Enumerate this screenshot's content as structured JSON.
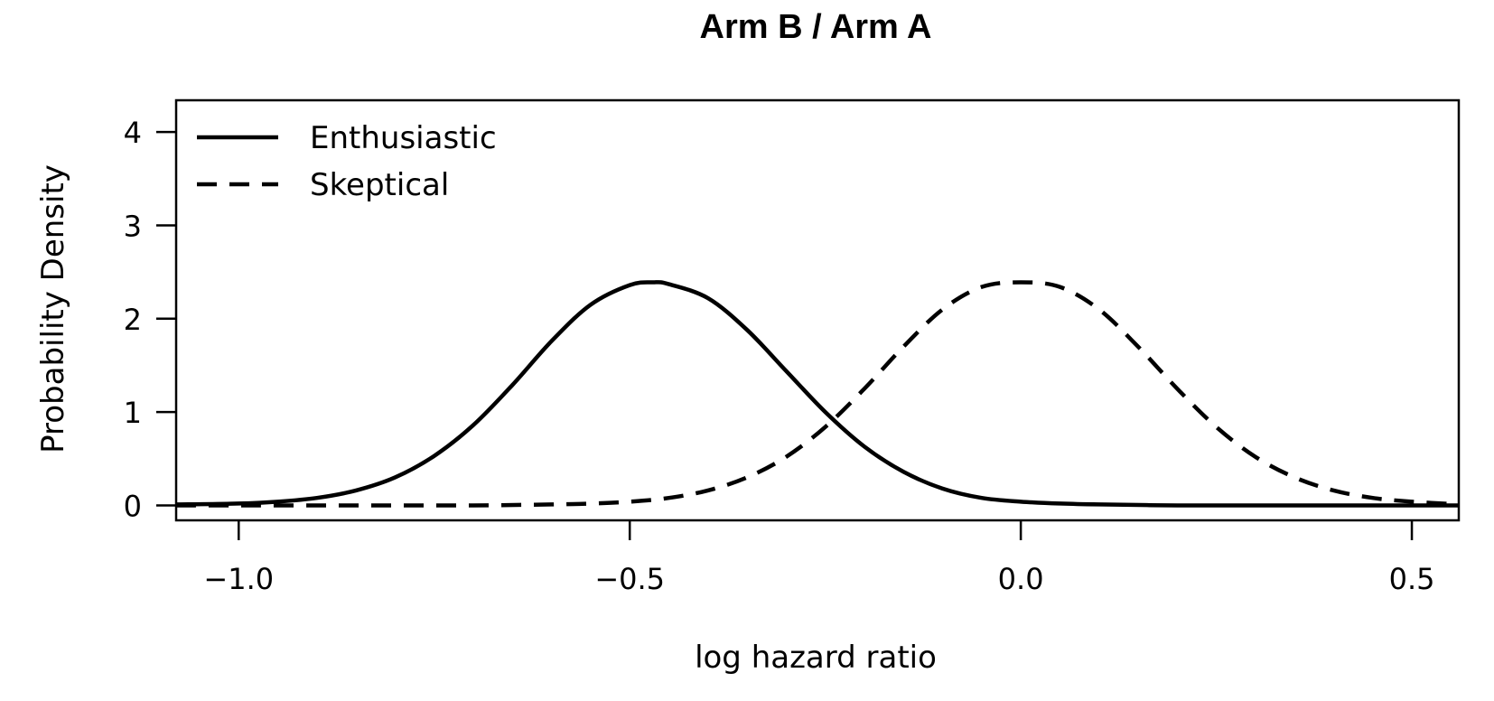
{
  "chart_data": {
    "type": "line",
    "title": "Arm B / Arm A",
    "xlabel": "log hazard ratio",
    "ylabel": "Probability Density",
    "xlim": [
      -1.08,
      0.56
    ],
    "ylim": [
      -0.16,
      4.34
    ],
    "x_ticks": [
      -1.0,
      -0.5,
      0.0,
      0.5
    ],
    "x_tick_labels": [
      "−1.0",
      "−0.5",
      "0.0",
      "0.5"
    ],
    "y_ticks": [
      0,
      1,
      2,
      3,
      4
    ],
    "y_tick_labels": [
      "0",
      "1",
      "2",
      "3",
      "4"
    ],
    "grid": false,
    "legend": "top-left",
    "series": [
      {
        "name": "Enthusiastic",
        "style": "solid",
        "color": "#000000",
        "x": [
          -1.08,
          -1.0,
          -0.95,
          -0.9,
          -0.85,
          -0.8,
          -0.75,
          -0.7,
          -0.65,
          -0.6,
          -0.55,
          -0.5,
          -0.47,
          -0.45,
          -0.4,
          -0.35,
          -0.3,
          -0.25,
          -0.2,
          -0.15,
          -0.1,
          -0.05,
          0.0,
          0.05,
          0.1,
          0.2,
          0.3,
          0.4,
          0.5,
          0.56
        ],
        "y": [
          0.01,
          0.02,
          0.04,
          0.08,
          0.16,
          0.3,
          0.53,
          0.86,
          1.29,
          1.76,
          2.15,
          2.36,
          2.39,
          2.37,
          2.22,
          1.88,
          1.44,
          1.0,
          0.63,
          0.36,
          0.18,
          0.08,
          0.04,
          0.02,
          0.01,
          0.0,
          0.0,
          0.0,
          0.0,
          0.0
        ]
      },
      {
        "name": "Skeptical",
        "style": "dashed",
        "color": "#000000",
        "x": [
          -1.08,
          -1.0,
          -0.9,
          -0.8,
          -0.7,
          -0.6,
          -0.55,
          -0.5,
          -0.45,
          -0.4,
          -0.35,
          -0.3,
          -0.25,
          -0.2,
          -0.15,
          -0.1,
          -0.05,
          0.0,
          0.05,
          0.1,
          0.15,
          0.2,
          0.25,
          0.3,
          0.35,
          0.4,
          0.45,
          0.5,
          0.56
        ],
        "y": [
          0.0,
          0.0,
          0.0,
          0.0,
          0.0,
          0.01,
          0.02,
          0.04,
          0.08,
          0.16,
          0.3,
          0.52,
          0.84,
          1.25,
          1.7,
          2.1,
          2.34,
          2.39,
          2.34,
          2.1,
          1.7,
          1.25,
          0.84,
          0.52,
          0.3,
          0.16,
          0.08,
          0.04,
          0.01
        ]
      }
    ]
  }
}
